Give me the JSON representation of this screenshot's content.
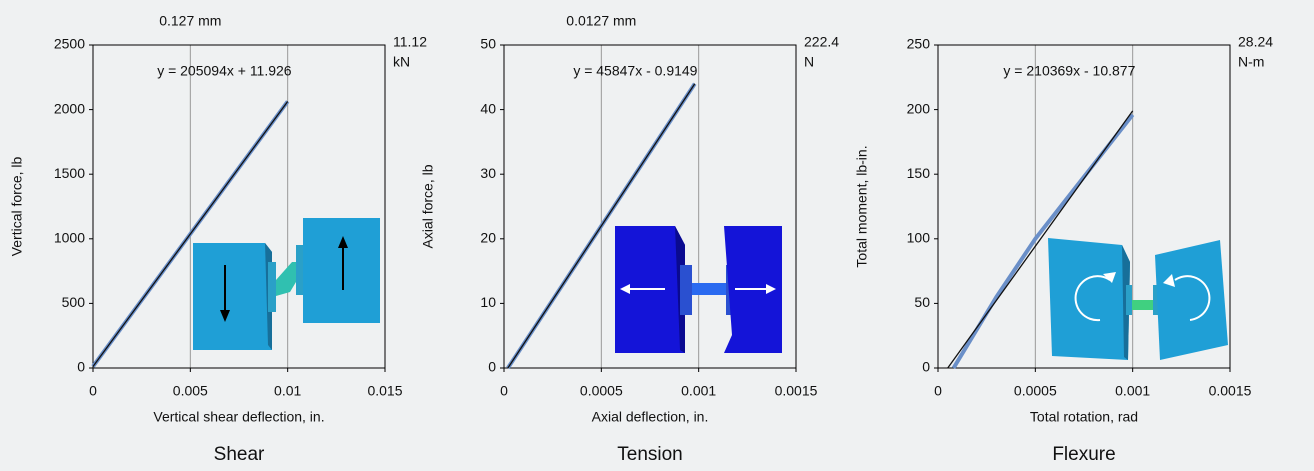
{
  "chart_data": [
    {
      "type": "line",
      "title": "Shear",
      "xlabel": "Vertical shear deflection, in.",
      "ylabel": "Vertical force, lb",
      "equation": "y = 205094x + 11.926",
      "top_annotation": "0.127 mm",
      "right_annotation": [
        "11.12",
        "kN"
      ],
      "xlim": [
        0,
        0.015
      ],
      "xticks": [
        0,
        0.005,
        0.01,
        0.015
      ],
      "ylim": [
        0,
        2500
      ],
      "yticks": [
        0,
        500,
        1000,
        1500,
        2000,
        2500
      ],
      "grid": "x",
      "series": [
        {
          "color": "#6a8fc8",
          "x": [
            0,
            0.01
          ],
          "values": [
            12,
            2063
          ]
        },
        {
          "color": "#111111",
          "x": [
            0,
            0.01
          ],
          "values": [
            11.926,
            2062.9
          ]
        }
      ]
    },
    {
      "type": "line",
      "title": "Tension",
      "xlabel": "Axial deflection, in.",
      "ylabel": "Axial force, lb",
      "equation": "y = 45847x - 0.9149",
      "top_annotation": "0.0127 mm",
      "right_annotation": [
        "222.4",
        "N"
      ],
      "xlim": [
        0,
        0.0015
      ],
      "xticks": [
        0,
        0.0005,
        0.001,
        0.0015
      ],
      "ylim": [
        0,
        50
      ],
      "yticks": [
        0,
        10,
        20,
        30,
        40,
        50
      ],
      "grid": "x",
      "series": [
        {
          "color": "#6a8fc8",
          "x": [
            2e-05,
            0.00098
          ],
          "values": [
            0,
            44
          ]
        },
        {
          "color": "#111111",
          "x": [
            2e-05,
            0.00098
          ],
          "values": [
            0,
            44
          ]
        }
      ]
    },
    {
      "type": "line",
      "title": "Flexure",
      "xlabel": "Total rotation, rad",
      "ylabel": "Total moment, lb-in.",
      "equation": "y = 210369x - 10.877",
      "right_annotation": [
        "28.24",
        "N-m"
      ],
      "xlim": [
        0,
        0.0015
      ],
      "xticks": [
        0,
        0.0005,
        0.001,
        0.0015
      ],
      "ylim": [
        0,
        250
      ],
      "yticks": [
        0,
        50,
        100,
        150,
        200,
        250
      ],
      "grid": "x",
      "series": [
        {
          "color": "#6a8fc8",
          "x": [
            8e-05,
            0.0003,
            0.0005,
            0.001
          ],
          "values": [
            0,
            55,
            100,
            196
          ]
        },
        {
          "color": "#111111",
          "x": [
            5e-05,
            0.001
          ],
          "values": [
            0,
            199
          ]
        }
      ]
    }
  ]
}
